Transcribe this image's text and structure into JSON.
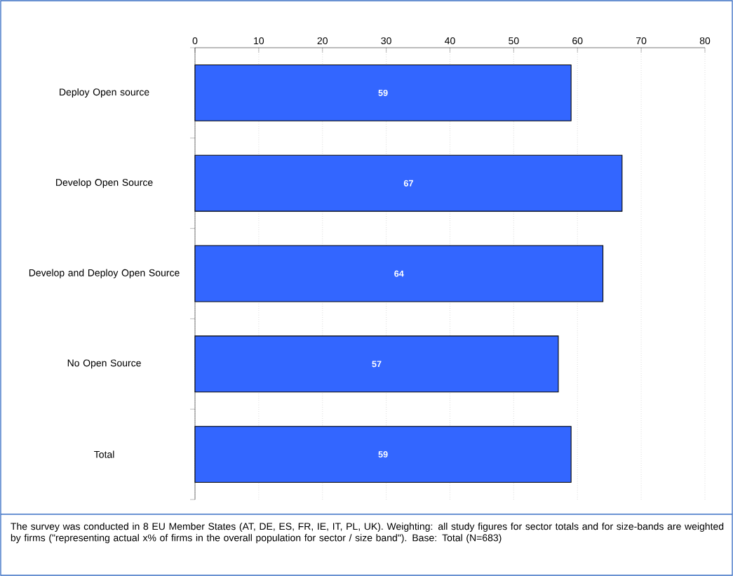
{
  "chart_data": {
    "type": "bar",
    "orientation": "horizontal",
    "categories": [
      "Deploy Open source",
      "Develop Open Source",
      "Develop and Deploy Open Source",
      "No Open Source",
      "Total"
    ],
    "values": [
      59,
      67,
      64,
      57,
      59
    ],
    "color": "#3366ff",
    "xlim": [
      0,
      80
    ],
    "xticks": [
      0,
      10,
      20,
      30,
      40,
      50,
      60,
      70,
      80
    ],
    "grid": "x",
    "data_labels": true,
    "annotations": [
      "The survey was conducted in 8 EU Member States (AT, DE, ES, FR, IE, IT, PL, UK). Weighting: all study figures for sector totals  and for size-bands are weighted by firms (\"representing actual  x% of firms in the overall population for sector / size band\").    Base: Total (N=683)"
    ]
  }
}
